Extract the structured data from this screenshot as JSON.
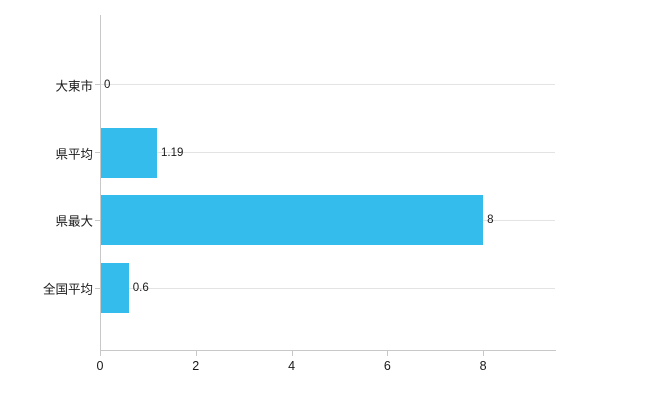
{
  "chart_data": {
    "type": "bar",
    "orientation": "horizontal",
    "title": "",
    "xlabel": "",
    "ylabel": "",
    "categories": [
      "大東市",
      "県平均",
      "県最大",
      "全国平均"
    ],
    "values": [
      0,
      1.19,
      8,
      0.6
    ],
    "value_labels": [
      "0",
      "1.19",
      "8",
      "0.6"
    ],
    "x_tick_labels": [
      "0",
      "2",
      "4",
      "6",
      "8"
    ],
    "x_tick_values": [
      0,
      2,
      4,
      6,
      8
    ],
    "xlim": [
      0,
      9.5
    ],
    "grid": true,
    "legend": false,
    "colors": {
      "bar": "#33bcec",
      "axis": "#c8c8c8",
      "grid": "#e3e3e3",
      "text": "#1a1a1a",
      "background": "#ffffff"
    }
  }
}
